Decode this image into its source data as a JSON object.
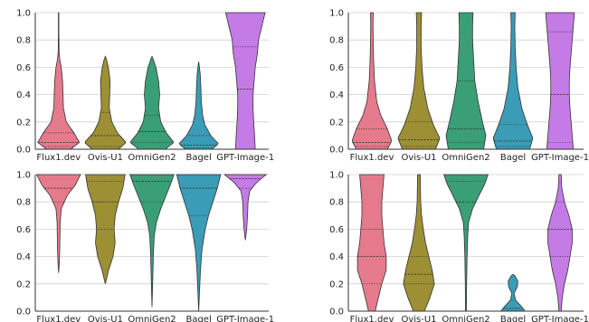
{
  "chart_data": [
    {
      "type": "violin",
      "ylim": [
        0,
        1
      ],
      "yticks": [
        "0.0",
        "0.2",
        "0.4",
        "0.6",
        "0.8",
        "1.0"
      ],
      "grid": "horizontal",
      "categories": [
        "Flux1.dev",
        "Ovis-U1",
        "OmniGen2",
        "Bagel",
        "GPT-Image-1"
      ],
      "series": [
        {
          "color": "#e57a8c",
          "min": 0.0,
          "max": 1.0,
          "q1": 0.02,
          "median": 0.05,
          "q3": 0.12,
          "density": [
            [
              0.0,
              0.55
            ],
            [
              0.05,
              0.95
            ],
            [
              0.12,
              0.7
            ],
            [
              0.2,
              0.35
            ],
            [
              0.3,
              0.22
            ],
            [
              0.4,
              0.2
            ],
            [
              0.5,
              0.18
            ],
            [
              0.6,
              0.12
            ],
            [
              0.66,
              0.05
            ],
            [
              0.72,
              0.02
            ],
            [
              0.85,
              0.01
            ],
            [
              1.0,
              0.01
            ]
          ]
        },
        {
          "color": "#9c8f34",
          "min": 0.0,
          "max": 0.68,
          "q1": 0.02,
          "median": 0.1,
          "q3": 0.27,
          "density": [
            [
              0.0,
              0.6
            ],
            [
              0.05,
              0.95
            ],
            [
              0.12,
              0.55
            ],
            [
              0.2,
              0.3
            ],
            [
              0.3,
              0.18
            ],
            [
              0.4,
              0.2
            ],
            [
              0.5,
              0.22
            ],
            [
              0.6,
              0.14
            ],
            [
              0.66,
              0.05
            ],
            [
              0.68,
              0.0
            ]
          ]
        },
        {
          "color": "#3a9e77",
          "min": 0.0,
          "max": 0.68,
          "q1": 0.05,
          "median": 0.13,
          "q3": 0.25,
          "density": [
            [
              0.0,
              0.6
            ],
            [
              0.05,
              1.0
            ],
            [
              0.12,
              0.65
            ],
            [
              0.2,
              0.4
            ],
            [
              0.3,
              0.3
            ],
            [
              0.4,
              0.35
            ],
            [
              0.5,
              0.3
            ],
            [
              0.6,
              0.18
            ],
            [
              0.66,
              0.05
            ],
            [
              0.68,
              0.0
            ]
          ]
        },
        {
          "color": "#3a9cb6",
          "min": 0.0,
          "max": 0.64,
          "q1": 0.01,
          "median": 0.03,
          "q3": 0.1,
          "density": [
            [
              0.0,
              0.6
            ],
            [
              0.04,
              0.9
            ],
            [
              0.1,
              0.55
            ],
            [
              0.18,
              0.28
            ],
            [
              0.25,
              0.18
            ],
            [
              0.35,
              0.12
            ],
            [
              0.45,
              0.1
            ],
            [
              0.55,
              0.07
            ],
            [
              0.62,
              0.02
            ],
            [
              0.64,
              0.0
            ]
          ]
        },
        {
          "color": "#c57be6",
          "min": 0.0,
          "max": 1.0,
          "q1": 0.0,
          "median": 0.44,
          "q3": 0.75,
          "density": [
            [
              0.0,
              0.45
            ],
            [
              0.1,
              0.42
            ],
            [
              0.2,
              0.38
            ],
            [
              0.3,
              0.35
            ],
            [
              0.4,
              0.35
            ],
            [
              0.5,
              0.4
            ],
            [
              0.6,
              0.45
            ],
            [
              0.7,
              0.55
            ],
            [
              0.8,
              0.6
            ],
            [
              0.9,
              0.75
            ],
            [
              1.0,
              0.9
            ]
          ]
        }
      ]
    },
    {
      "type": "violin",
      "ylim": [
        0,
        1
      ],
      "yticks": [
        "0.0",
        "0.2",
        "0.4",
        "0.6",
        "0.8",
        "1.0"
      ],
      "grid": "horizontal",
      "categories": [
        "Flux1.dev",
        "Ovis-U1",
        "OmniGen2",
        "Bagel",
        "GPT-Image-1"
      ],
      "series": [
        {
          "color": "#e57a8c",
          "min": 0.0,
          "max": 1.0,
          "q1": 0.02,
          "median": 0.05,
          "q3": 0.15,
          "density": [
            [
              0.0,
              0.7
            ],
            [
              0.06,
              0.9
            ],
            [
              0.15,
              0.7
            ],
            [
              0.25,
              0.4
            ],
            [
              0.35,
              0.22
            ],
            [
              0.5,
              0.12
            ],
            [
              0.65,
              0.08
            ],
            [
              0.8,
              0.06
            ],
            [
              0.9,
              0.05
            ],
            [
              1.0,
              0.06
            ]
          ]
        },
        {
          "color": "#9c8f34",
          "min": 0.0,
          "max": 1.0,
          "q1": 0.02,
          "median": 0.07,
          "q3": 0.2,
          "density": [
            [
              0.0,
              0.75
            ],
            [
              0.08,
              0.95
            ],
            [
              0.18,
              0.65
            ],
            [
              0.3,
              0.4
            ],
            [
              0.45,
              0.22
            ],
            [
              0.6,
              0.14
            ],
            [
              0.75,
              0.1
            ],
            [
              0.9,
              0.1
            ],
            [
              1.0,
              0.12
            ]
          ]
        },
        {
          "color": "#3a9e77",
          "min": 0.0,
          "max": 1.0,
          "q1": 0.05,
          "median": 0.15,
          "q3": 0.5,
          "density": [
            [
              0.0,
              0.8
            ],
            [
              0.1,
              0.9
            ],
            [
              0.2,
              0.75
            ],
            [
              0.35,
              0.55
            ],
            [
              0.5,
              0.4
            ],
            [
              0.65,
              0.35
            ],
            [
              0.8,
              0.3
            ],
            [
              0.9,
              0.3
            ],
            [
              1.0,
              0.32
            ]
          ]
        },
        {
          "color": "#3a9cb6",
          "min": 0.0,
          "max": 1.0,
          "q1": 0.02,
          "median": 0.06,
          "q3": 0.18,
          "density": [
            [
              0.0,
              0.75
            ],
            [
              0.08,
              0.9
            ],
            [
              0.18,
              0.65
            ],
            [
              0.3,
              0.4
            ],
            [
              0.45,
              0.22
            ],
            [
              0.6,
              0.14
            ],
            [
              0.75,
              0.1
            ],
            [
              0.9,
              0.08
            ],
            [
              1.0,
              0.1
            ]
          ]
        },
        {
          "color": "#c57be6",
          "min": 0.0,
          "max": 1.0,
          "q1": 0.05,
          "median": 0.4,
          "q3": 0.86,
          "density": [
            [
              0.0,
              0.6
            ],
            [
              0.1,
              0.55
            ],
            [
              0.2,
              0.5
            ],
            [
              0.3,
              0.45
            ],
            [
              0.4,
              0.42
            ],
            [
              0.5,
              0.42
            ],
            [
              0.6,
              0.45
            ],
            [
              0.7,
              0.5
            ],
            [
              0.8,
              0.55
            ],
            [
              0.9,
              0.6
            ],
            [
              1.0,
              0.65
            ]
          ]
        }
      ]
    },
    {
      "type": "violin",
      "ylim": [
        0,
        1
      ],
      "yticks": [
        "0.0",
        "0.2",
        "0.4",
        "0.6",
        "0.8",
        "1.0"
      ],
      "grid": "horizontal",
      "categories": [
        "Flux1.dev",
        "Ovis-U1",
        "OmniGen2",
        "Bagel",
        "GPT-Image-1"
      ],
      "series": [
        {
          "color": "#e57a8c",
          "min": 0.28,
          "max": 1.0,
          "q1": 0.8,
          "median": 0.9,
          "q3": 1.0,
          "density": [
            [
              0.28,
              0.0
            ],
            [
              0.35,
              0.03
            ],
            [
              0.45,
              0.05
            ],
            [
              0.55,
              0.06
            ],
            [
              0.65,
              0.07
            ],
            [
              0.75,
              0.12
            ],
            [
              0.85,
              0.4
            ],
            [
              0.92,
              0.75
            ],
            [
              1.0,
              1.0
            ]
          ]
        },
        {
          "color": "#9c8f34",
          "min": 0.2,
          "max": 1.0,
          "q1": 0.6,
          "median": 0.8,
          "q3": 0.95,
          "density": [
            [
              0.2,
              0.0
            ],
            [
              0.3,
              0.15
            ],
            [
              0.4,
              0.35
            ],
            [
              0.5,
              0.45
            ],
            [
              0.6,
              0.4
            ],
            [
              0.7,
              0.45
            ],
            [
              0.8,
              0.6
            ],
            [
              0.9,
              0.8
            ],
            [
              1.0,
              0.9
            ]
          ]
        },
        {
          "color": "#3a9e77",
          "min": 0.03,
          "max": 1.0,
          "q1": 0.8,
          "median": 0.95,
          "q3": 1.0,
          "density": [
            [
              0.03,
              0.0
            ],
            [
              0.2,
              0.03
            ],
            [
              0.4,
              0.06
            ],
            [
              0.55,
              0.1
            ],
            [
              0.65,
              0.2
            ],
            [
              0.75,
              0.4
            ],
            [
              0.85,
              0.65
            ],
            [
              0.93,
              0.85
            ],
            [
              1.0,
              1.0
            ]
          ]
        },
        {
          "color": "#3a9cb6",
          "min": 0.0,
          "max": 1.0,
          "q1": 0.7,
          "median": 0.9,
          "q3": 1.0,
          "density": [
            [
              0.0,
              0.0
            ],
            [
              0.15,
              0.04
            ],
            [
              0.3,
              0.08
            ],
            [
              0.45,
              0.15
            ],
            [
              0.6,
              0.3
            ],
            [
              0.7,
              0.45
            ],
            [
              0.8,
              0.65
            ],
            [
              0.9,
              0.85
            ],
            [
              1.0,
              1.0
            ]
          ]
        },
        {
          "color": "#c57be6",
          "min": 0.52,
          "max": 1.0,
          "q1": 0.9,
          "median": 0.97,
          "q3": 1.0,
          "density": [
            [
              0.52,
              0.0
            ],
            [
              0.6,
              0.06
            ],
            [
              0.7,
              0.1
            ],
            [
              0.8,
              0.12
            ],
            [
              0.88,
              0.2
            ],
            [
              0.94,
              0.5
            ],
            [
              1.0,
              0.95
            ]
          ]
        }
      ]
    },
    {
      "type": "violin",
      "ylim": [
        0,
        1
      ],
      "yticks": [
        "0.0",
        "0.2",
        "0.4",
        "0.6",
        "0.8",
        "1.0"
      ],
      "grid": "horizontal",
      "categories": [
        "Flux1.dev",
        "Ovis-U1",
        "OmniGen2",
        "Bagel",
        "GPT-Image-1"
      ],
      "series": [
        {
          "color": "#e57a8c",
          "min": 0.0,
          "max": 1.0,
          "q1": 0.2,
          "median": 0.4,
          "q3": 0.6,
          "density": [
            [
              0.0,
              0.15
            ],
            [
              0.1,
              0.3
            ],
            [
              0.2,
              0.45
            ],
            [
              0.3,
              0.65
            ],
            [
              0.4,
              0.65
            ],
            [
              0.5,
              0.55
            ],
            [
              0.6,
              0.5
            ],
            [
              0.7,
              0.45
            ],
            [
              0.8,
              0.45
            ],
            [
              0.9,
              0.5
            ],
            [
              1.0,
              0.55
            ]
          ]
        },
        {
          "color": "#9c8f34",
          "min": 0.0,
          "max": 1.0,
          "q1": 0.2,
          "median": 0.27,
          "q3": 0.4,
          "density": [
            [
              0.0,
              0.25
            ],
            [
              0.1,
              0.5
            ],
            [
              0.2,
              0.7
            ],
            [
              0.3,
              0.6
            ],
            [
              0.4,
              0.45
            ],
            [
              0.5,
              0.3
            ],
            [
              0.6,
              0.2
            ],
            [
              0.7,
              0.12
            ],
            [
              0.8,
              0.08
            ],
            [
              0.9,
              0.07
            ],
            [
              1.0,
              0.06
            ]
          ]
        },
        {
          "color": "#3a9e77",
          "min": 0.0,
          "max": 1.0,
          "q1": 0.6,
          "median": 0.8,
          "q3": 0.95,
          "density": [
            [
              0.0,
              0.02
            ],
            [
              0.2,
              0.03
            ],
            [
              0.4,
              0.05
            ],
            [
              0.55,
              0.08
            ],
            [
              0.65,
              0.12
            ],
            [
              0.75,
              0.3
            ],
            [
              0.85,
              0.6
            ],
            [
              0.93,
              0.85
            ],
            [
              1.0,
              1.0
            ]
          ]
        },
        {
          "color": "#3a9cb6",
          "min": 0.0,
          "max": 0.27,
          "q1": 0.0,
          "median": 0.02,
          "q3": 0.08,
          "density": [
            [
              0.0,
              0.55
            ],
            [
              0.04,
              0.35
            ],
            [
              0.08,
              0.12
            ],
            [
              0.13,
              0.05
            ],
            [
              0.18,
              0.2
            ],
            [
              0.22,
              0.22
            ],
            [
              0.26,
              0.08
            ],
            [
              0.27,
              0.0
            ]
          ]
        },
        {
          "color": "#c57be6",
          "min": 0.0,
          "max": 1.0,
          "q1": 0.4,
          "median": 0.6,
          "q3": 0.8,
          "density": [
            [
              0.0,
              0.05
            ],
            [
              0.1,
              0.1
            ],
            [
              0.2,
              0.2
            ],
            [
              0.3,
              0.35
            ],
            [
              0.4,
              0.45
            ],
            [
              0.5,
              0.55
            ],
            [
              0.6,
              0.55
            ],
            [
              0.7,
              0.4
            ],
            [
              0.8,
              0.2
            ],
            [
              0.9,
              0.08
            ],
            [
              1.0,
              0.05
            ]
          ]
        }
      ]
    }
  ]
}
